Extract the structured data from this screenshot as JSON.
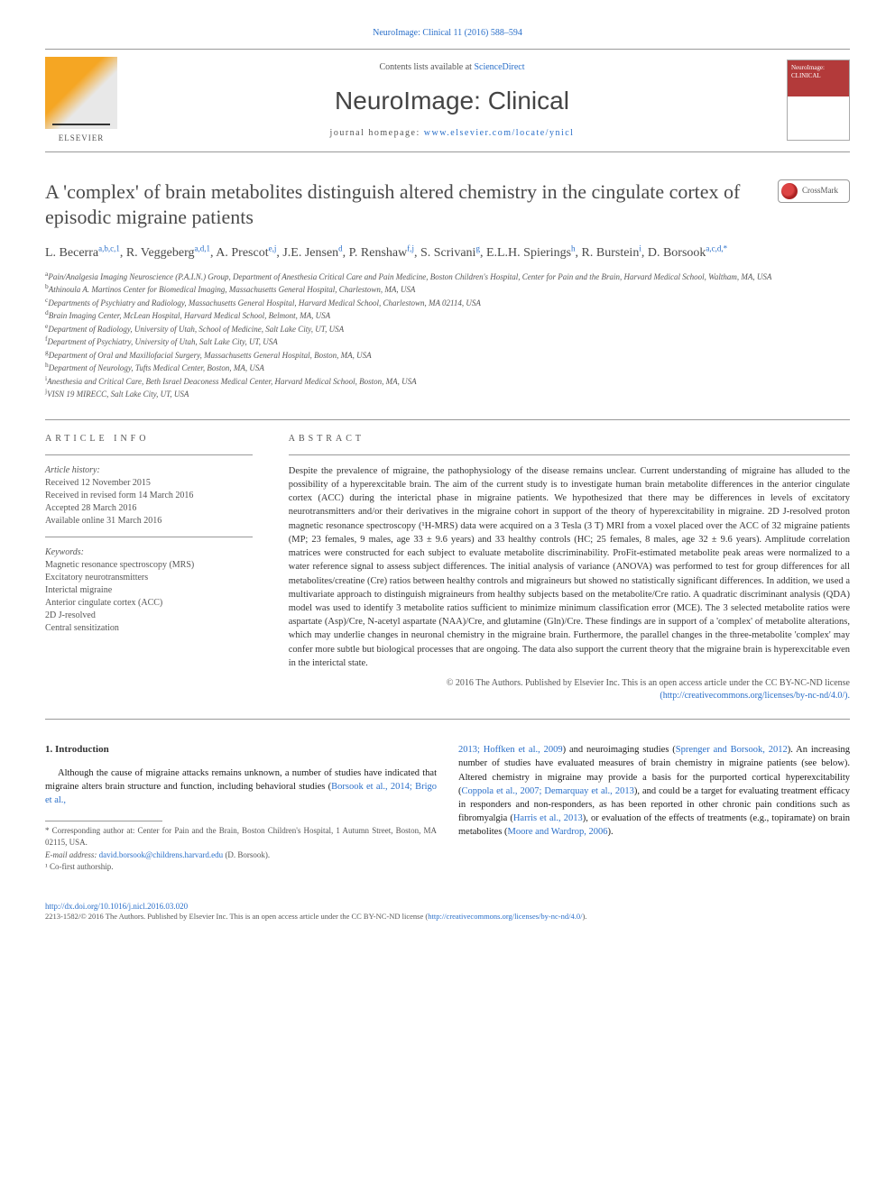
{
  "top_link": "NeuroImage: Clinical 11 (2016) 588–594",
  "header": {
    "contents_prefix": "Contents lists available at ",
    "contents_link": "ScienceDirect",
    "journal": "NeuroImage: Clinical",
    "homepage_prefix": "journal homepage: ",
    "homepage_link": "www.elsevier.com/locate/ynicl",
    "publisher": "ELSEVIER",
    "cover_text": "NeuroImage:\nCLINICAL"
  },
  "crossmark": "CrossMark",
  "title": "A 'complex' of brain metabolites distinguish altered chemistry in the cingulate cortex of episodic migraine patients",
  "authors_html": "L. Becerra<sup>a,b,c,1</sup>, R. Veggeberg<sup>a,d,1</sup>, A. Prescot<sup>e,j</sup>, J.E. Jensen<sup>d</sup>, P. Renshaw<sup>f,j</sup>, S. Scrivani<sup>g</sup>, E.L.H. Spierings<sup>h</sup>, R. Burstein<sup>i</sup>, D. Borsook<sup>a,c,d,*</sup>",
  "affiliations": [
    {
      "sup": "a",
      "text": "Pain/Analgesia Imaging Neuroscience (P.A.I.N.) Group, Department of Anesthesia Critical Care and Pain Medicine, Boston Children's Hospital, Center for Pain and the Brain, Harvard Medical School, Waltham, MA, USA"
    },
    {
      "sup": "b",
      "text": "Athinoula A. Martinos Center for Biomedical Imaging, Massachusetts General Hospital, Charlestown, MA, USA"
    },
    {
      "sup": "c",
      "text": "Departments of Psychiatry and Radiology, Massachusetts General Hospital, Harvard Medical School, Charlestown, MA 02114, USA"
    },
    {
      "sup": "d",
      "text": "Brain Imaging Center, McLean Hospital, Harvard Medical School, Belmont, MA, USA"
    },
    {
      "sup": "e",
      "text": "Department of Radiology, University of Utah, School of Medicine, Salt Lake City, UT, USA"
    },
    {
      "sup": "f",
      "text": "Department of Psychiatry, University of Utah, Salt Lake City, UT, USA"
    },
    {
      "sup": "g",
      "text": "Department of Oral and Maxillofacial Surgery, Massachusetts General Hospital, Boston, MA, USA"
    },
    {
      "sup": "h",
      "text": "Department of Neurology, Tufts Medical Center, Boston, MA, USA"
    },
    {
      "sup": "i",
      "text": "Anesthesia and Critical Care, Beth Israel Deaconess Medical Center, Harvard Medical School, Boston, MA, USA"
    },
    {
      "sup": "j",
      "text": "VISN 19 MIRECC, Salt Lake City, UT, USA"
    }
  ],
  "article_info": {
    "head": "ARTICLE INFO",
    "history_label": "Article history:",
    "history": [
      "Received 12 November 2015",
      "Received in revised form 14 March 2016",
      "Accepted 28 March 2016",
      "Available online 31 March 2016"
    ],
    "keywords_label": "Keywords:",
    "keywords": [
      "Magnetic resonance spectroscopy (MRS)",
      "Excitatory neurotransmitters",
      "Interictal migraine",
      "Anterior cingulate cortex (ACC)",
      "2D J-resolved",
      "Central sensitization"
    ]
  },
  "abstract": {
    "head": "ABSTRACT",
    "text": "Despite the prevalence of migraine, the pathophysiology of the disease remains unclear. Current understanding of migraine has alluded to the possibility of a hyperexcitable brain. The aim of the current study is to investigate human brain metabolite differences in the anterior cingulate cortex (ACC) during the interictal phase in migraine patients. We hypothesized that there may be differences in levels of excitatory neurotransmitters and/or their derivatives in the migraine cohort in support of the theory of hyperexcitability in migraine. 2D J-resolved proton magnetic resonance spectroscopy (¹H-MRS) data were acquired on a 3 Tesla (3 T) MRI from a voxel placed over the ACC of 32 migraine patients (MP; 23 females, 9 males, age 33 ± 9.6 years) and 33 healthy controls (HC; 25 females, 8 males, age 32 ± 9.6 years). Amplitude correlation matrices were constructed for each subject to evaluate metabolite discriminability. ProFit-estimated metabolite peak areas were normalized to a water reference signal to assess subject differences. The initial analysis of variance (ANOVA) was performed to test for group differences for all metabolites/creatine (Cre) ratios between healthy controls and migraineurs but showed no statistically significant differences. In addition, we used a multivariate approach to distinguish migraineurs from healthy subjects based on the metabolite/Cre ratio. A quadratic discriminant analysis (QDA) model was used to identify 3 metabolite ratios sufficient to minimize minimum classification error (MCE). The 3 selected metabolite ratios were aspartate (Asp)/Cre, N-acetyl aspartate (NAA)/Cre, and glutamine (Gln)/Cre. These findings are in support of a 'complex' of metabolite alterations, which may underlie changes in neuronal chemistry in the migraine brain. Furthermore, the parallel changes in the three-metabolite 'complex' may confer more subtle but biological processes that are ongoing. The data also support the current theory that the migraine brain is hyperexcitable even in the interictal state.",
    "copyright": "© 2016 The Authors. Published by Elsevier Inc. This is an open access article under the CC BY-NC-ND license",
    "license_link": "(http://creativecommons.org/licenses/by-nc-nd/4.0/)."
  },
  "intro": {
    "heading": "1. Introduction",
    "col1_html": "Although the cause of migraine attacks remains unknown, a number of studies have indicated that migraine alters brain structure and function, including behavioral studies (<a>Borsook et al., 2014; Brigo et al.,</a>",
    "col2_html": "<a>2013; Hoffken et al., 2009</a>) and neuroimaging studies (<a>Sprenger and Borsook, 2012</a>). An increasing number of studies have evaluated measures of brain chemistry in migraine patients (see below). Altered chemistry in migraine may provide a basis for the purported cortical hyperexcitability (<a>Coppola et al., 2007; Demarquay et al., 2013</a>), and could be a target for evaluating treatment efficacy in responders and non-responders, as has been reported in other chronic pain conditions such as fibromyalgia (<a>Harris et al., 2013</a>), or evaluation of the effects of treatments (e.g., topiramate) on brain metabolites (<a>Moore and Wardrop, 2006</a>)."
  },
  "footnotes": {
    "corresponding": "* Corresponding author at: Center for Pain and the Brain, Boston Children's Hospital, 1 Autumn Street, Boston, MA 02115, USA.",
    "email_label": "E-mail address: ",
    "email": "david.borsook@childrens.harvard.edu",
    "email_suffix": " (D. Borsook).",
    "cofirst": "¹ Co-first authorship."
  },
  "doi": "http://dx.doi.org/10.1016/j.nicl.2016.03.020",
  "bottom_license": "2213-1582/© 2016 The Authors. Published by Elsevier Inc. This is an open access article under the CC BY-NC-ND license (",
  "bottom_license_link": "http://creativecommons.org/licenses/by-nc-nd/4.0/",
  "bottom_license_close": ").",
  "colors": {
    "link": "#2a6fc9",
    "text": "#333333",
    "muted": "#555555",
    "rule": "#999999",
    "cover": "#b33a3a",
    "logo": "#f5a623"
  }
}
